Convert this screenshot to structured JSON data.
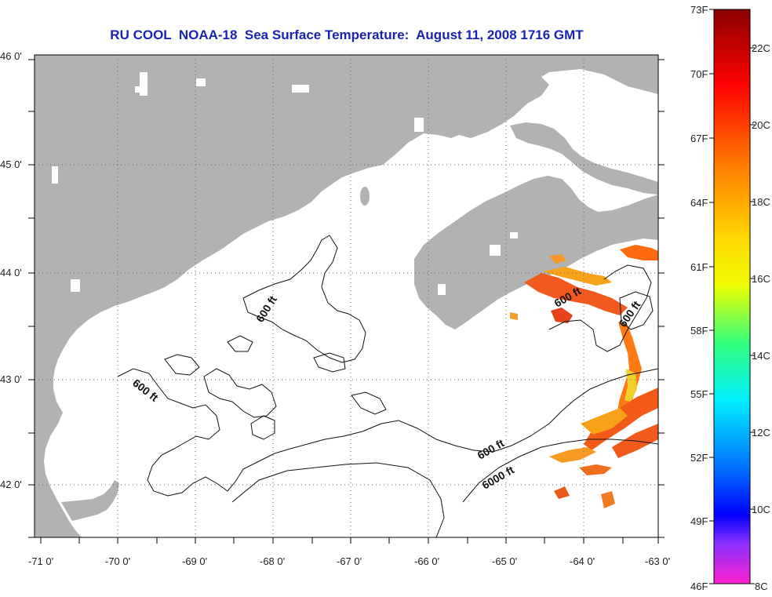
{
  "title": "RU COOL  NOAA-18  Sea Surface Temperature:  August 11, 2008 1716 GMT",
  "lat_labels": [
    "46 0'",
    "45 0'",
    "44 0'",
    "43 0'",
    "42 0'"
  ],
  "lon_labels": [
    "-71 0'",
    "-70 0'",
    "-69 0'",
    "-68 0'",
    "-67 0'",
    "-66 0'",
    "-65 0'",
    "-64 0'",
    "-63 0'"
  ],
  "contour_labels": {
    "c1": "600 ft",
    "c2": "600 ft",
    "c3": "600 ft",
    "c4": "600 ft",
    "c5": "600 ft",
    "c6": "6000 ft"
  },
  "colorbar": {
    "fahrenheit": [
      "73F",
      "70F",
      "67F",
      "64F",
      "61F",
      "58F",
      "55F",
      "52F",
      "49F",
      "46F"
    ],
    "celsius": [
      "22C",
      "20C",
      "18C",
      "16C",
      "14C",
      "12C",
      "10C",
      "8C"
    ]
  },
  "colors": {
    "land": "#b2b2b2",
    "ocean": "#ffffff",
    "title": "#1a23b0",
    "contour": "#111111",
    "gradient": [
      "#8b0000",
      "#ff0000",
      "#ff8c00",
      "#ffff00",
      "#00ff7f",
      "#00ffff",
      "#0000ff",
      "#ff00ff"
    ]
  }
}
